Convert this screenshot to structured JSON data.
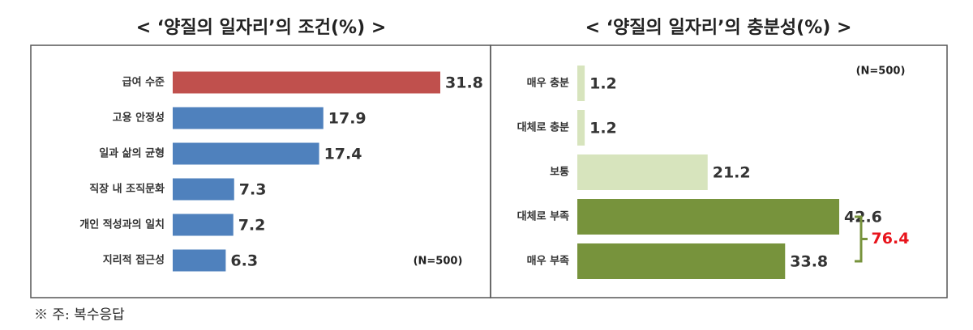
{
  "chart_data": [
    {
      "type": "bar",
      "orientation": "horizontal",
      "title": "< ‘양질의 일자리’의 조건(%) >",
      "categories": [
        "급여 수준",
        "고용 안정성",
        "일과 삶의 균형",
        "직장 내 조직문화",
        "개인 적성과의 일치",
        "지리적 접근성"
      ],
      "values": [
        31.8,
        17.9,
        17.4,
        7.3,
        7.2,
        6.3
      ],
      "colors": [
        "#c0504d",
        "#4f81bd",
        "#4f81bd",
        "#4f81bd",
        "#4f81bd",
        "#4f81bd"
      ],
      "note": "(N=500)"
    },
    {
      "type": "bar",
      "orientation": "horizontal",
      "title": "< ‘양질의 일자리’의 충분성(%) >",
      "categories": [
        "매우 충분",
        "대체로 충분",
        "보통",
        "대체로 부족",
        "매우 부족"
      ],
      "values": [
        1.2,
        1.2,
        21.2,
        42.6,
        33.8
      ],
      "colors": [
        "#d7e4bd",
        "#d7e4bd",
        "#d7e4bd",
        "#77933c",
        "#77933c"
      ],
      "note": "(N=500)",
      "bracket_total": 76.4
    }
  ],
  "footnote": "※ 주: 복수응답"
}
